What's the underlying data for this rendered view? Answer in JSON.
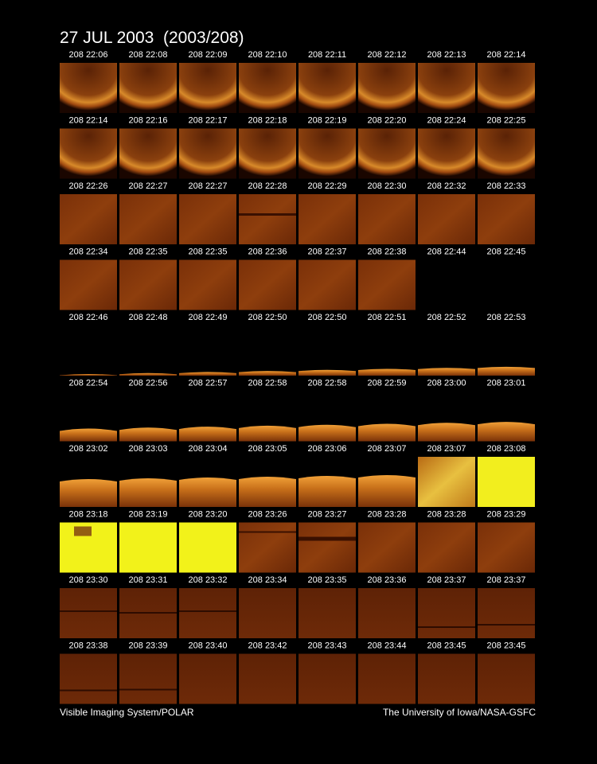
{
  "title": "27 JUL 2003  (2003/208)",
  "panels": [
    [
      "208 22:06",
      "208 22:08",
      "208 22:09",
      "208 22:10",
      "208 22:11",
      "208 22:12",
      "208 22:13",
      "208 22:14"
    ],
    [
      "208 22:14",
      "208 22:16",
      "208 22:17",
      "208 22:18",
      "208 22:19",
      "208 22:20",
      "208 22:24",
      "208 22:25"
    ],
    [
      "208 22:26",
      "208 22:27",
      "208 22:27",
      "208 22:28",
      "208 22:29",
      "208 22:30",
      "208 22:32",
      "208 22:33"
    ],
    [
      "208 22:34",
      "208 22:35",
      "208 22:35",
      "208 22:36",
      "208 22:37",
      "208 22:38",
      "208 22:44",
      "208 22:45"
    ],
    [
      "208 22:46",
      "208 22:48",
      "208 22:49",
      "208 22:50",
      "208 22:50",
      "208 22:51",
      "208 22:52",
      "208 22:53"
    ],
    [
      "208 22:54",
      "208 22:56",
      "208 22:57",
      "208 22:58",
      "208 22:58",
      "208 22:59",
      "208 23:00",
      "208 23:01"
    ],
    [
      "208 23:02",
      "208 23:03",
      "208 23:04",
      "208 23:05",
      "208 23:06",
      "208 23:07",
      "208 23:07",
      "208 23:08"
    ],
    [
      "208 23:18",
      "208 23:19",
      "208 23:20",
      "208 23:26",
      "208 23:27",
      "208 23:28",
      "208 23:28",
      "208 23:29"
    ],
    [
      "208 23:30",
      "208 23:31",
      "208 23:32",
      "208 23:34",
      "208 23:35",
      "208 23:36",
      "208 23:37",
      "208 23:37"
    ],
    [
      "208 23:38",
      "208 23:39",
      "208 23:40",
      "208 23:42",
      "208 23:43",
      "208 23:44",
      "208 23:45",
      "208 23:45"
    ]
  ],
  "footer": {
    "left": "Visible Imaging System/POLAR",
    "right": "The University of Iowa/NASA-GSFC"
  }
}
